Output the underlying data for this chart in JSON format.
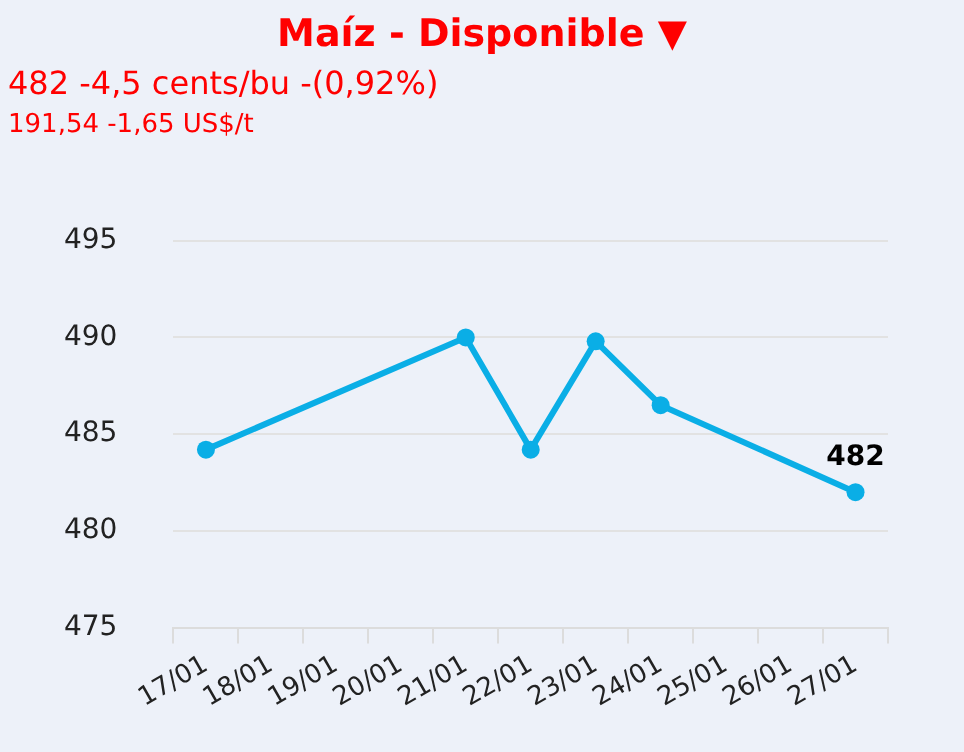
{
  "chart_data": {
    "type": "line",
    "title": "Maíz - Disponible ▼",
    "subtitle": "482 -4,5 cents/bu -(0,92%)",
    "annotations": [
      "191,54 -1,65 US$/t"
    ],
    "categories": [
      "17/01",
      "18/01",
      "19/01",
      "20/01",
      "21/01",
      "22/01",
      "23/01",
      "24/01",
      "25/01",
      "26/01",
      "27/01"
    ],
    "series": [
      {
        "color": "#0aaee6",
        "values": [
          484.2,
          null,
          null,
          null,
          490,
          484.2,
          489.8,
          486.5,
          null,
          null,
          482
        ],
        "value_labels": [
          null,
          null,
          null,
          null,
          null,
          null,
          null,
          null,
          null,
          null,
          "482"
        ]
      }
    ],
    "ylim": [
      475,
      495
    ],
    "yticks": [
      475,
      480,
      485,
      490,
      495
    ],
    "grid": "y",
    "legend": false,
    "marker": "circle",
    "line_style": "solid"
  }
}
